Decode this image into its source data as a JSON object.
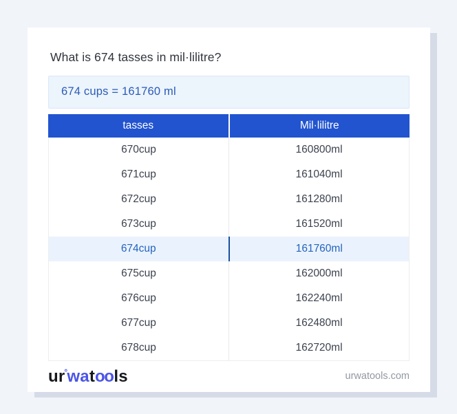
{
  "header": {
    "title": "What is 674 tasses in mil·lilitre?"
  },
  "answer": {
    "text": "674 cups = 161760 ml"
  },
  "table": {
    "columns": [
      "tasses",
      "Mil·lilitre"
    ],
    "rows": [
      {
        "tasses": "670cup",
        "ml": "160800ml"
      },
      {
        "tasses": "671cup",
        "ml": "161040ml"
      },
      {
        "tasses": "672cup",
        "ml": "161280ml"
      },
      {
        "tasses": "673cup",
        "ml": "161520ml"
      },
      {
        "tasses": "674cup",
        "ml": "161760ml"
      },
      {
        "tasses": "675cup",
        "ml": "162000ml"
      },
      {
        "tasses": "676cup",
        "ml": "162240ml"
      },
      {
        "tasses": "677cup",
        "ml": "162480ml"
      },
      {
        "tasses": "678cup",
        "ml": "162720ml"
      }
    ],
    "highlighted_row_index": 4
  },
  "footer": {
    "logo_text": "urwatools",
    "logo_parts": [
      "ur",
      "°",
      "wa",
      "t",
      "oo",
      "ls"
    ],
    "site": "urwatools.com"
  },
  "colors": {
    "page_bg": "#f1f4f9",
    "card_bg": "#ffffff",
    "card_shadow": "#d6dbe8",
    "table_header_bg": "#2254cf",
    "table_header_text": "#ffffff",
    "answer_bg": "#ecf4fc",
    "answer_text": "#2a5cb5",
    "highlight_row_bg": "#eaf3fd",
    "highlight_row_text": "#2563bd",
    "highlight_divider": "#1d4f9e",
    "row_text": "#3c424e",
    "logo_blue": "#4b55e6",
    "logo_dark": "#17181b",
    "site_text": "#9298a2"
  }
}
